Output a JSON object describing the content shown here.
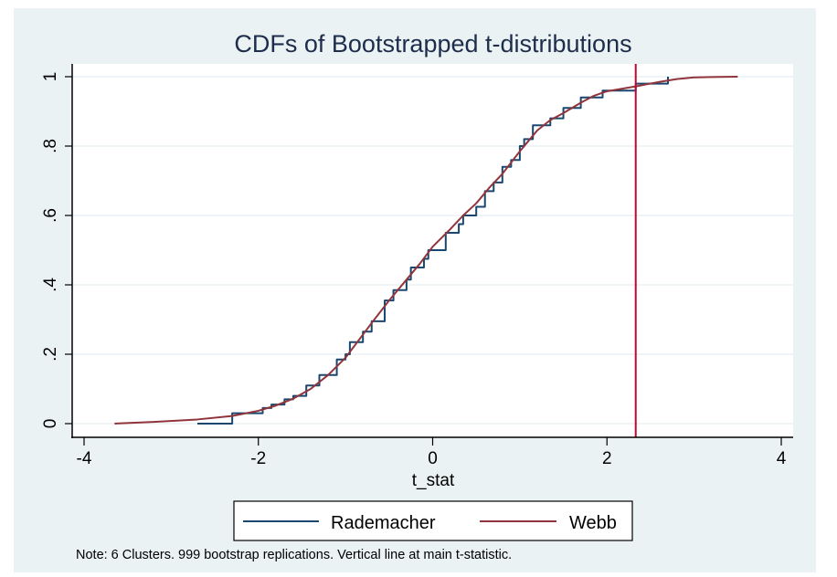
{
  "chart_data": {
    "type": "line",
    "title": "CDFs of Bootstrapped t-distributions",
    "xlabel": "t_stat",
    "ylabel": "",
    "xlim": [
      -4,
      4
    ],
    "ylim": [
      0,
      1
    ],
    "xticks": [
      -4,
      -2,
      0,
      2,
      4
    ],
    "xtick_labels": [
      "-4",
      "-2",
      "0",
      "2",
      "4"
    ],
    "yticks": [
      0,
      0.2,
      0.4,
      0.6,
      0.8,
      1
    ],
    "ytick_labels": [
      "0",
      ".2",
      ".4",
      ".6",
      ".8",
      "1"
    ],
    "grid": true,
    "legend_position": "bottom",
    "vertical_line": {
      "x": 2.33,
      "color": "#c10534"
    },
    "series": [
      {
        "name": "Rademacher",
        "style": "step",
        "color": "#1a476f",
        "x": [
          -2.7,
          -2.3,
          -1.95,
          -1.85,
          -1.7,
          -1.6,
          -1.45,
          -1.3,
          -1.1,
          -1.0,
          -0.95,
          -0.8,
          -0.7,
          -0.55,
          -0.45,
          -0.3,
          -0.25,
          -0.1,
          -0.05,
          0.15,
          0.3,
          0.35,
          0.5,
          0.6,
          0.7,
          0.8,
          0.9,
          1.0,
          1.05,
          1.15,
          1.35,
          1.5,
          1.7,
          1.95,
          2.33,
          2.7
        ],
        "y": [
          0.0,
          0.03,
          0.045,
          0.055,
          0.07,
          0.08,
          0.11,
          0.14,
          0.185,
          0.2,
          0.235,
          0.265,
          0.295,
          0.355,
          0.385,
          0.415,
          0.45,
          0.475,
          0.5,
          0.55,
          0.575,
          0.6,
          0.625,
          0.67,
          0.695,
          0.74,
          0.76,
          0.8,
          0.82,
          0.86,
          0.88,
          0.91,
          0.94,
          0.96,
          0.98,
          1.0
        ]
      },
      {
        "name": "Webb",
        "style": "line",
        "color": "#90353b",
        "x": [
          -3.65,
          -3.2,
          -2.7,
          -2.3,
          -2.0,
          -1.8,
          -1.6,
          -1.4,
          -1.2,
          -1.0,
          -0.85,
          -0.7,
          -0.5,
          -0.3,
          -0.15,
          0,
          0.2,
          0.35,
          0.5,
          0.65,
          0.8,
          1.0,
          1.1,
          1.2,
          1.35,
          1.5,
          1.7,
          1.85,
          2.0,
          2.33,
          2.6,
          2.8,
          3.0,
          3.2,
          3.5
        ],
        "y": [
          0.0,
          0.005,
          0.012,
          0.022,
          0.037,
          0.052,
          0.072,
          0.1,
          0.14,
          0.19,
          0.24,
          0.29,
          0.355,
          0.415,
          0.46,
          0.51,
          0.56,
          0.6,
          0.635,
          0.68,
          0.72,
          0.785,
          0.815,
          0.845,
          0.875,
          0.895,
          0.925,
          0.945,
          0.958,
          0.972,
          0.985,
          0.993,
          0.998,
          0.999,
          1.0
        ]
      }
    ],
    "note": "Note: 6 Clusters.  999 bootstrap replications.  Vertical line at main t-statistic."
  },
  "colors": {
    "background": "#eaf2f3",
    "plot": "#ffffff",
    "grid": "#eaf2f3",
    "title": "#1e2d4c"
  }
}
